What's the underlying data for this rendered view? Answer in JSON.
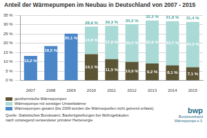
{
  "chart_data": {
    "type": "bar",
    "title": "Anteil der Wärmepumpen im Neubau in Deutschland von 2007 - 2015",
    "categories": [
      "2007",
      "2008",
      "2009",
      "2010",
      "2011",
      "2012",
      "2013",
      "2014",
      "2015"
    ],
    "series": [
      {
        "name": "Wärmepumpen gesamt (bis 2009 wurden die Wärmequellen nicht getrennt erfasst)",
        "color": "#4a86c8",
        "values": [
          13.2,
          18.5,
          25.1,
          null,
          null,
          null,
          null,
          null,
          null
        ],
        "value_labels": [
          "13,2 %",
          "18,5 %",
          "25,1 %",
          null,
          null,
          null,
          null,
          null,
          null
        ]
      },
      {
        "name": "geothermische Wärmepumpen",
        "color": "#5c5535",
        "values": [
          null,
          null,
          null,
          14.1,
          11.5,
          10.0,
          9.2,
          8.1,
          7.1
        ],
        "value_labels": [
          null,
          null,
          null,
          "14,1 %",
          "11,5 %",
          "10,0 %",
          "9,2 %",
          "8,1 %",
          "7,1 %"
        ]
      },
      {
        "name": "Wärmepumpe mit sonstiger Umweltwärme",
        "color": "#a9dad6",
        "values": [
          null,
          null,
          null,
          14.8,
          17.8,
          20.2,
          22.9,
          23.7,
          24.3
        ],
        "value_labels": [
          null,
          null,
          null,
          "14,8 %",
          "17,8 %",
          "20,2 %",
          "22,9 %",
          "23,7 %",
          "24,3 %"
        ]
      }
    ],
    "totals": {
      "values": [
        null,
        null,
        null,
        28.9,
        29.3,
        30.2,
        32.2,
        31.8,
        31.4
      ],
      "value_labels": [
        null,
        null,
        null,
        "28,9 %",
        "29,3 %",
        "30,2 %",
        "32,2 %",
        "31,8 %",
        "31,4 %"
      ]
    },
    "ylim": [
      0,
      35
    ],
    "yticks": [
      {
        "value": 0,
        "label": "0 %"
      },
      {
        "value": 5,
        "label": "5 %"
      },
      {
        "value": 10,
        "label": "10 %"
      },
      {
        "value": 15,
        "label": "15 %"
      },
      {
        "value": 20,
        "label": "20 %"
      },
      {
        "value": 25,
        "label": "25 %"
      },
      {
        "value": 30,
        "label": "30 %"
      },
      {
        "value": 35,
        "label": "35 %"
      }
    ],
    "grid": true,
    "stacked": true,
    "data_labels": true,
    "source": [
      "Quelle: Statistisches Bundesamt, Baufertigstellungen bei Wohngebäuden",
      "nach vorwiegend verwendeter primärer Heizenergie"
    ],
    "logo": [
      "bwp",
      "Bundesverband",
      "Wärmepumpe e.V."
    ]
  }
}
